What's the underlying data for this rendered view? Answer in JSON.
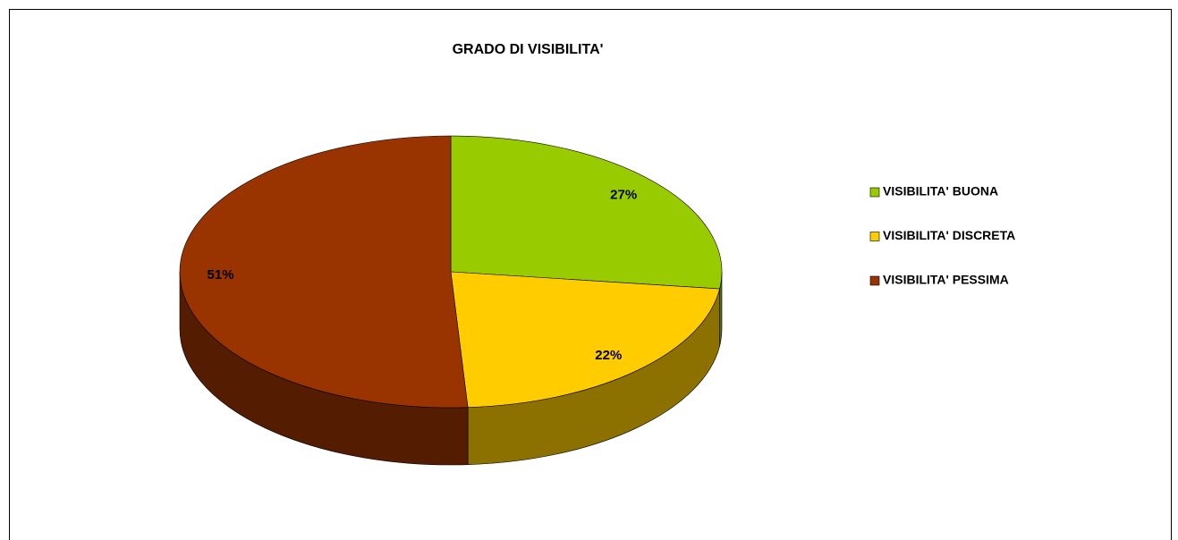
{
  "chart_data": {
    "type": "pie3d",
    "title": "GRADO DI VISIBILITA'",
    "categories": [
      "VISIBILITA' BUONA",
      "VISIBILITA' DISCRETA",
      "VISIBILITA' PESSIMA"
    ],
    "values": [
      27,
      22,
      51
    ],
    "value_labels": [
      "27%",
      "22%",
      "51%"
    ],
    "colors": [
      "#99cc00",
      "#ffcc00",
      "#993300"
    ],
    "legend": "right"
  }
}
